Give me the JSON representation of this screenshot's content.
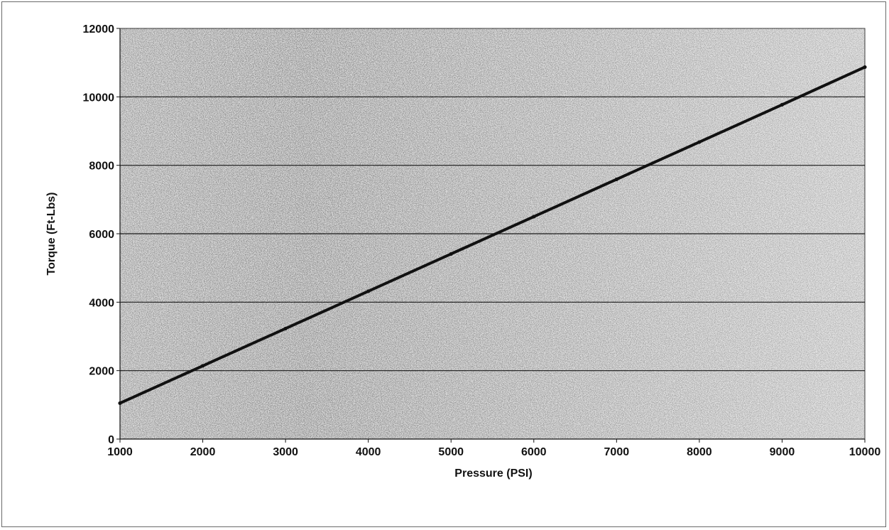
{
  "chart_data": {
    "type": "line",
    "title": "",
    "xlabel": "Pressure (PSI)",
    "ylabel": "Torque (Ft-Lbs)",
    "xlim": [
      1000,
      10000
    ],
    "ylim": [
      0,
      12000
    ],
    "xticks": [
      "1000",
      "2000",
      "3000",
      "4000",
      "5000",
      "6000",
      "7000",
      "8000",
      "9000",
      "10000"
    ],
    "yticks": [
      "0",
      "2000",
      "4000",
      "6000",
      "8000",
      "10000",
      "12000"
    ],
    "grid": "horizontal",
    "legend": "none",
    "series": [
      {
        "x": [
          1000,
          2000,
          3000,
          4000,
          5000,
          6000,
          7000,
          8000,
          9000,
          10000
        ],
        "y": [
          1050,
          2140,
          3230,
          4320,
          5410,
          6500,
          7590,
          8680,
          9770,
          10870
        ],
        "color": "#111111"
      }
    ],
    "colors": {
      "plot_background": "#a9a9a9",
      "gridline": "#1a1a1a",
      "line": "#111111"
    }
  }
}
